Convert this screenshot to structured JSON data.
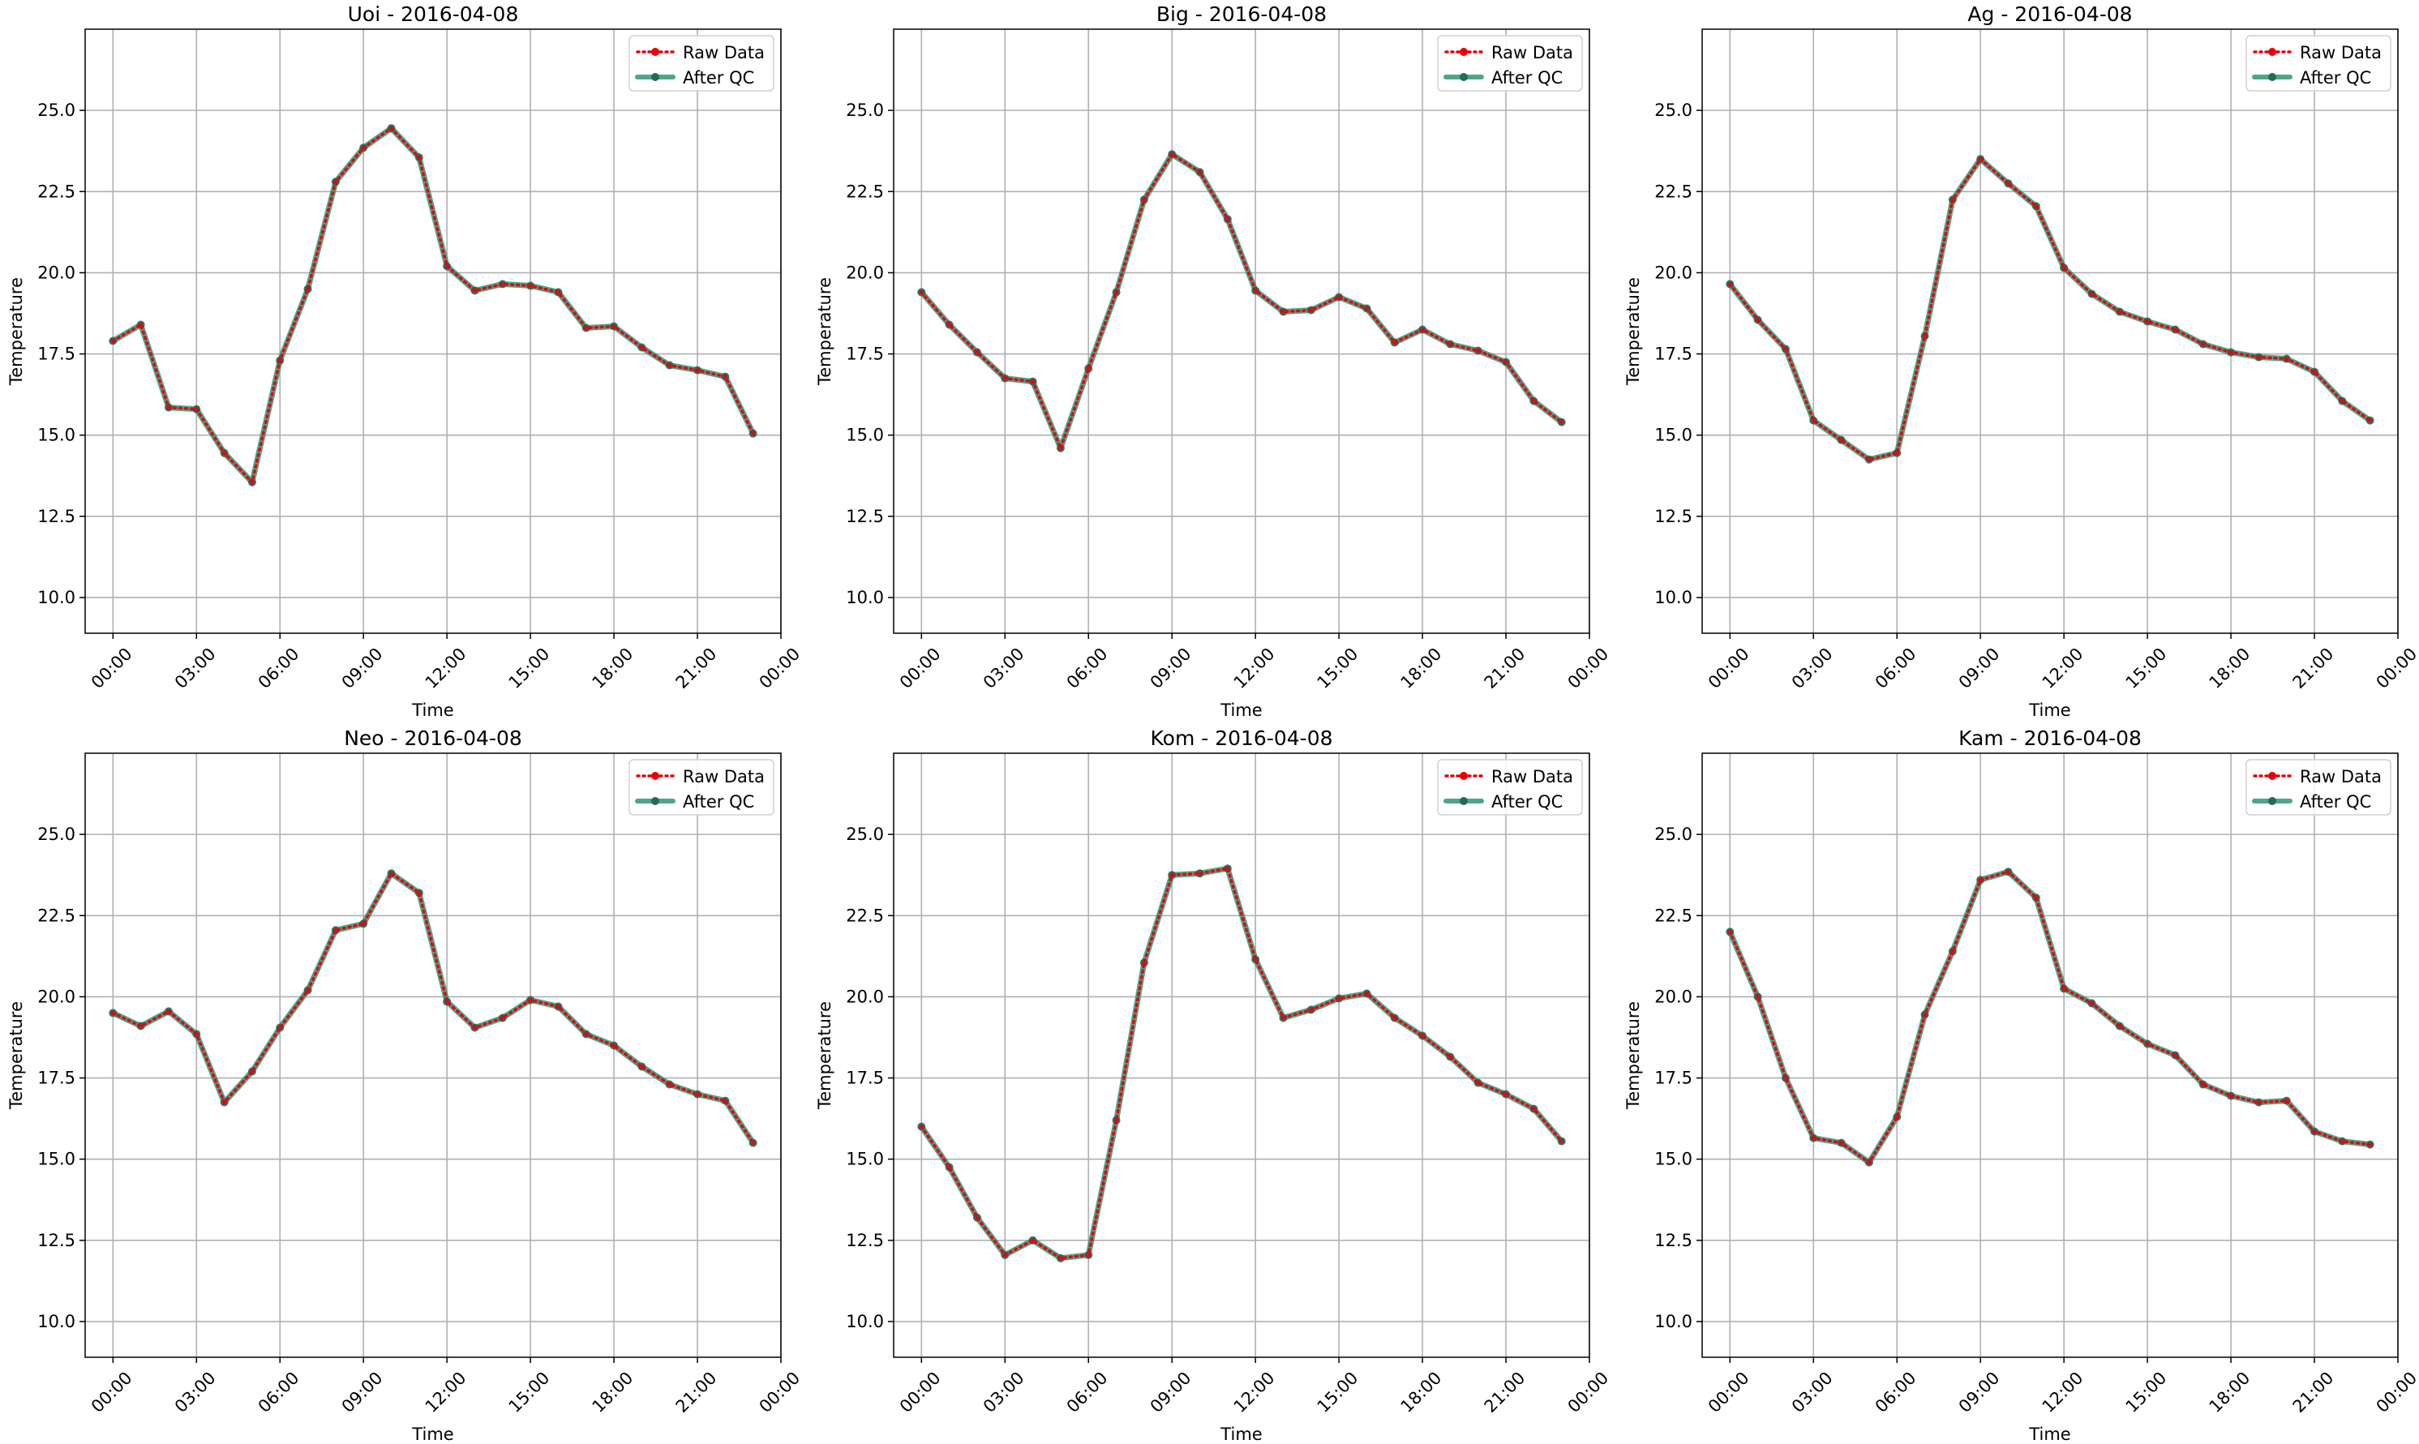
{
  "colors": {
    "raw": "#e8000b",
    "qc": "#2e9676",
    "marker": "#236b57",
    "grid": "#b0b0b0"
  },
  "chart_data": [
    {
      "type": "line",
      "title": "Uoi - 2016-04-08",
      "xlabel": "Time",
      "ylabel": "Temperature",
      "x": [
        0,
        1,
        2,
        3,
        4,
        5,
        6,
        7,
        8,
        9,
        10,
        11,
        12,
        13,
        14,
        15,
        16,
        17,
        18,
        19,
        20,
        21,
        22,
        23
      ],
      "xlim": [
        -1.0,
        24.0
      ],
      "ylim": [
        8.9,
        27.5
      ],
      "xticks": [
        0,
        3,
        6,
        9,
        12,
        15,
        18,
        21,
        24
      ],
      "xtick_labels": [
        "00:00",
        "03:00",
        "06:00",
        "09:00",
        "12:00",
        "15:00",
        "18:00",
        "21:00",
        "00:00"
      ],
      "yticks": [
        10.0,
        12.5,
        15.0,
        17.5,
        20.0,
        22.5,
        25.0
      ],
      "ytick_labels": [
        "10.0",
        "12.5",
        "15.0",
        "17.5",
        "20.0",
        "22.5",
        "25.0"
      ],
      "grid": true,
      "legend_position": "top-right",
      "series": [
        {
          "name": "Raw Data",
          "style": "dotted",
          "values": [
            17.9,
            18.4,
            15.85,
            15.8,
            14.45,
            13.55,
            17.3,
            19.5,
            22.8,
            23.85,
            24.45,
            23.55,
            20.2,
            19.45,
            19.65,
            19.6,
            19.4,
            18.3,
            18.35,
            17.7,
            17.15,
            17.0,
            16.8,
            15.05
          ]
        },
        {
          "name": "After QC",
          "style": "solid",
          "values": [
            17.9,
            18.4,
            15.85,
            15.8,
            14.45,
            13.55,
            17.3,
            19.5,
            22.8,
            23.85,
            24.45,
            23.55,
            20.2,
            19.45,
            19.65,
            19.6,
            19.4,
            18.3,
            18.35,
            17.7,
            17.15,
            17.0,
            16.8,
            15.05
          ]
        }
      ]
    },
    {
      "type": "line",
      "title": "Big - 2016-04-08",
      "xlabel": "Time",
      "ylabel": "Temperature",
      "x": [
        0,
        1,
        2,
        3,
        4,
        5,
        6,
        7,
        8,
        9,
        10,
        11,
        12,
        13,
        14,
        15,
        16,
        17,
        18,
        19,
        20,
        21,
        22,
        23
      ],
      "xlim": [
        -1.0,
        24.0
      ],
      "ylim": [
        8.9,
        27.5
      ],
      "xticks": [
        0,
        3,
        6,
        9,
        12,
        15,
        18,
        21,
        24
      ],
      "xtick_labels": [
        "00:00",
        "03:00",
        "06:00",
        "09:00",
        "12:00",
        "15:00",
        "18:00",
        "21:00",
        "00:00"
      ],
      "yticks": [
        10.0,
        12.5,
        15.0,
        17.5,
        20.0,
        22.5,
        25.0
      ],
      "ytick_labels": [
        "10.0",
        "12.5",
        "15.0",
        "17.5",
        "20.0",
        "22.5",
        "25.0"
      ],
      "grid": true,
      "legend_position": "top-right",
      "series": [
        {
          "name": "Raw Data",
          "style": "dotted",
          "values": [
            19.4,
            18.4,
            17.55,
            16.75,
            16.65,
            14.6,
            17.05,
            19.4,
            22.25,
            23.65,
            23.1,
            21.65,
            19.45,
            18.8,
            18.85,
            19.25,
            18.9,
            17.85,
            18.25,
            17.8,
            17.6,
            17.25,
            16.05,
            15.4
          ]
        },
        {
          "name": "After QC",
          "style": "solid",
          "values": [
            19.4,
            18.4,
            17.55,
            16.75,
            16.65,
            14.6,
            17.05,
            19.4,
            22.25,
            23.65,
            23.1,
            21.65,
            19.45,
            18.8,
            18.85,
            19.25,
            18.9,
            17.85,
            18.25,
            17.8,
            17.6,
            17.25,
            16.05,
            15.4
          ]
        }
      ]
    },
    {
      "type": "line",
      "title": "Ag - 2016-04-08",
      "xlabel": "Time",
      "ylabel": "Temperature",
      "x": [
        0,
        1,
        2,
        3,
        4,
        5,
        6,
        7,
        8,
        9,
        10,
        11,
        12,
        13,
        14,
        15,
        16,
        17,
        18,
        19,
        20,
        21,
        22,
        23
      ],
      "xlim": [
        -1.0,
        24.0
      ],
      "ylim": [
        8.9,
        27.5
      ],
      "xticks": [
        0,
        3,
        6,
        9,
        12,
        15,
        18,
        21,
        24
      ],
      "xtick_labels": [
        "00:00",
        "03:00",
        "06:00",
        "09:00",
        "12:00",
        "15:00",
        "18:00",
        "21:00",
        "00:00"
      ],
      "yticks": [
        10.0,
        12.5,
        15.0,
        17.5,
        20.0,
        22.5,
        25.0
      ],
      "ytick_labels": [
        "10.0",
        "12.5",
        "15.0",
        "17.5",
        "20.0",
        "22.5",
        "25.0"
      ],
      "grid": true,
      "legend_position": "top-right",
      "series": [
        {
          "name": "Raw Data",
          "style": "dotted",
          "values": [
            19.65,
            18.55,
            17.65,
            15.45,
            14.85,
            14.25,
            14.45,
            18.05,
            22.25,
            23.5,
            22.75,
            22.05,
            20.15,
            19.35,
            18.8,
            18.5,
            18.25,
            17.8,
            17.55,
            17.4,
            17.35,
            16.95,
            16.05,
            15.45
          ]
        },
        {
          "name": "After QC",
          "style": "solid",
          "values": [
            19.65,
            18.55,
            17.65,
            15.45,
            14.85,
            14.25,
            14.45,
            18.05,
            22.25,
            23.5,
            22.75,
            22.05,
            20.15,
            19.35,
            18.8,
            18.5,
            18.25,
            17.8,
            17.55,
            17.4,
            17.35,
            16.95,
            16.05,
            15.45
          ]
        }
      ]
    },
    {
      "type": "line",
      "title": "Neo - 2016-04-08",
      "xlabel": "Time",
      "ylabel": "Temperature",
      "x": [
        0,
        1,
        2,
        3,
        4,
        5,
        6,
        7,
        8,
        9,
        10,
        11,
        12,
        13,
        14,
        15,
        16,
        17,
        18,
        19,
        20,
        21,
        22,
        23
      ],
      "xlim": [
        -1.0,
        24.0
      ],
      "ylim": [
        8.9,
        27.5
      ],
      "xticks": [
        0,
        3,
        6,
        9,
        12,
        15,
        18,
        21,
        24
      ],
      "xtick_labels": [
        "00:00",
        "03:00",
        "06:00",
        "09:00",
        "12:00",
        "15:00",
        "18:00",
        "21:00",
        "00:00"
      ],
      "yticks": [
        10.0,
        12.5,
        15.0,
        17.5,
        20.0,
        22.5,
        25.0
      ],
      "ytick_labels": [
        "10.0",
        "12.5",
        "15.0",
        "17.5",
        "20.0",
        "22.5",
        "25.0"
      ],
      "grid": true,
      "legend_position": "top-right",
      "series": [
        {
          "name": "Raw Data",
          "style": "dotted",
          "values": [
            19.5,
            19.1,
            19.55,
            18.85,
            16.75,
            17.7,
            19.05,
            20.2,
            22.05,
            22.25,
            23.8,
            23.2,
            19.85,
            19.05,
            19.35,
            19.9,
            19.7,
            18.85,
            18.5,
            17.85,
            17.3,
            17.0,
            16.8,
            15.5
          ]
        },
        {
          "name": "After QC",
          "style": "solid",
          "values": [
            19.5,
            19.1,
            19.55,
            18.85,
            16.75,
            17.7,
            19.05,
            20.2,
            22.05,
            22.25,
            23.8,
            23.2,
            19.85,
            19.05,
            19.35,
            19.9,
            19.7,
            18.85,
            18.5,
            17.85,
            17.3,
            17.0,
            16.8,
            15.5
          ]
        }
      ]
    },
    {
      "type": "line",
      "title": "Kom - 2016-04-08",
      "xlabel": "Time",
      "ylabel": "Temperature",
      "x": [
        0,
        1,
        2,
        3,
        4,
        5,
        6,
        7,
        8,
        9,
        10,
        11,
        12,
        13,
        14,
        15,
        16,
        17,
        18,
        19,
        20,
        21,
        22,
        23
      ],
      "xlim": [
        -1.0,
        24.0
      ],
      "ylim": [
        8.9,
        27.5
      ],
      "xticks": [
        0,
        3,
        6,
        9,
        12,
        15,
        18,
        21,
        24
      ],
      "xtick_labels": [
        "00:00",
        "03:00",
        "06:00",
        "09:00",
        "12:00",
        "15:00",
        "18:00",
        "21:00",
        "00:00"
      ],
      "yticks": [
        10.0,
        12.5,
        15.0,
        17.5,
        20.0,
        22.5,
        25.0
      ],
      "ytick_labels": [
        "10.0",
        "12.5",
        "15.0",
        "17.5",
        "20.0",
        "22.5",
        "25.0"
      ],
      "grid": true,
      "legend_position": "top-right",
      "series": [
        {
          "name": "Raw Data",
          "style": "dotted",
          "values": [
            16.0,
            14.75,
            13.2,
            12.05,
            12.5,
            11.95,
            12.05,
            16.2,
            21.05,
            23.75,
            23.8,
            23.95,
            21.15,
            19.35,
            19.6,
            19.95,
            20.1,
            19.35,
            18.8,
            18.15,
            17.35,
            17.0,
            16.55,
            15.55
          ]
        },
        {
          "name": "After QC",
          "style": "solid",
          "values": [
            16.0,
            14.75,
            13.2,
            12.05,
            12.5,
            11.95,
            12.05,
            16.2,
            21.05,
            23.75,
            23.8,
            23.95,
            21.15,
            19.35,
            19.6,
            19.95,
            20.1,
            19.35,
            18.8,
            18.15,
            17.35,
            17.0,
            16.55,
            15.55
          ]
        }
      ]
    },
    {
      "type": "line",
      "title": "Kam - 2016-04-08",
      "xlabel": "Time",
      "ylabel": "Temperature",
      "x": [
        0,
        1,
        2,
        3,
        4,
        5,
        6,
        7,
        8,
        9,
        10,
        11,
        12,
        13,
        14,
        15,
        16,
        17,
        18,
        19,
        20,
        21,
        22,
        23
      ],
      "xlim": [
        -1.0,
        24.0
      ],
      "ylim": [
        8.9,
        27.5
      ],
      "xticks": [
        0,
        3,
        6,
        9,
        12,
        15,
        18,
        21,
        24
      ],
      "xtick_labels": [
        "00:00",
        "03:00",
        "06:00",
        "09:00",
        "12:00",
        "15:00",
        "18:00",
        "21:00",
        "00:00"
      ],
      "yticks": [
        10.0,
        12.5,
        15.0,
        17.5,
        20.0,
        22.5,
        25.0
      ],
      "ytick_labels": [
        "10.0",
        "12.5",
        "15.0",
        "17.5",
        "20.0",
        "22.5",
        "25.0"
      ],
      "grid": true,
      "legend_position": "top-right",
      "series": [
        {
          "name": "Raw Data",
          "style": "dotted",
          "values": [
            22.0,
            20.0,
            17.5,
            15.65,
            15.5,
            14.9,
            16.3,
            19.45,
            21.4,
            23.6,
            23.85,
            23.05,
            20.25,
            19.8,
            19.1,
            18.55,
            18.2,
            17.3,
            16.95,
            16.75,
            16.8,
            15.85,
            15.55,
            15.45
          ]
        },
        {
          "name": "After QC",
          "style": "solid",
          "values": [
            22.0,
            20.0,
            17.5,
            15.65,
            15.5,
            14.9,
            16.3,
            19.45,
            21.4,
            23.6,
            23.85,
            23.05,
            20.25,
            19.8,
            19.1,
            18.55,
            18.2,
            17.3,
            16.95,
            16.75,
            16.8,
            15.85,
            15.55,
            15.45
          ]
        }
      ]
    }
  ]
}
